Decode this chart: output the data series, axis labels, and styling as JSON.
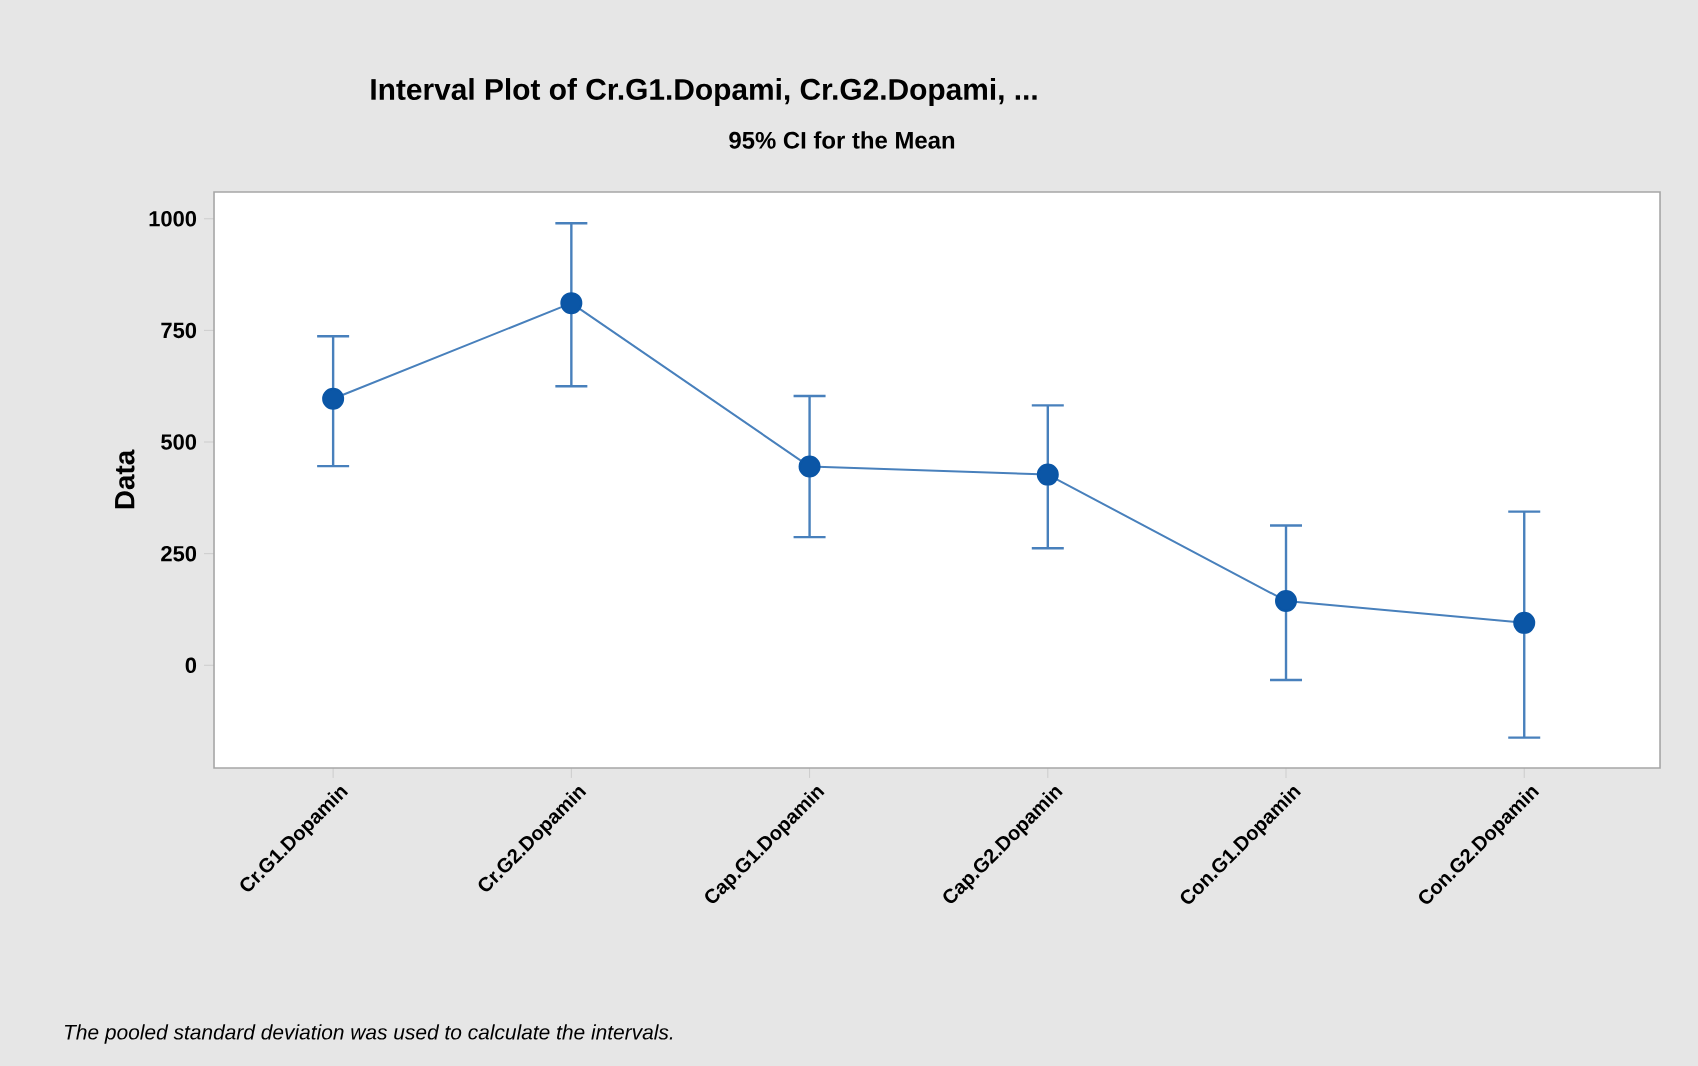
{
  "chart_data": {
    "type": "line",
    "title": "Interval Plot of Cr.G1.Dopami, Cr.G2.Dopami, ...",
    "subtitle": "95% CI for the Mean",
    "ylabel": "Data",
    "annotations": [
      "The pooled standard deviation was used to calculate the intervals."
    ],
    "categories": [
      "Cr.G1.Dopamin",
      "Cr.G2.Dopamin",
      "Cap.G1.Dopamin",
      "Cap.G2.Dopamin",
      "Con.G1.Dopamin",
      "Con.G2.Dopamin"
    ],
    "series": [
      {
        "color": "#0b56a6",
        "values": [
          597,
          811,
          445,
          427,
          144,
          95
        ],
        "errors": [
          [
            446,
            737
          ],
          [
            625,
            990
          ],
          [
            287,
            603
          ],
          [
            262,
            582
          ],
          [
            -33,
            313
          ],
          [
            -162,
            344
          ]
        ]
      }
    ],
    "ylim": [
      -230,
      1060
    ],
    "yticks": [
      0,
      250,
      500,
      750,
      1000
    ],
    "marker": "circle",
    "line_style": "solid",
    "grid": false
  }
}
